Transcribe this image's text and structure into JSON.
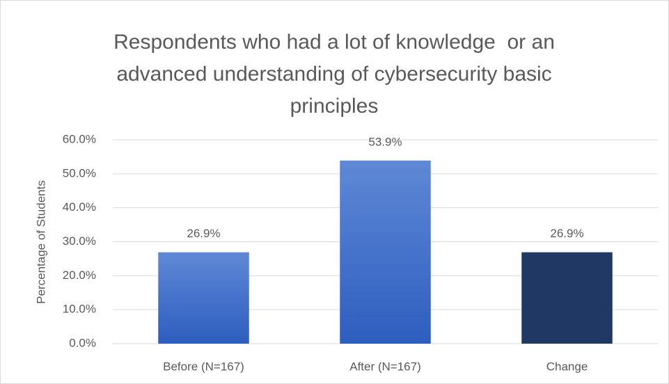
{
  "chart_data": {
    "type": "bar",
    "title": "Respondents who had a lot of knowledge  or an advanced understanding of cybersecurity basic principles",
    "y_label": "Percentage of Students",
    "categories": [
      "Before (N=167)",
      "After (N=167)",
      "Change"
    ],
    "values": [
      26.9,
      53.9,
      26.9
    ],
    "value_labels": [
      "26.9%",
      "53.9%",
      "26.9%"
    ],
    "colors": [
      "#4472c4",
      "#4472c4",
      "#203864"
    ],
    "ylim": [
      0,
      60
    ],
    "yticks": [
      {
        "value": 0,
        "label": "0.0%"
      },
      {
        "value": 10,
        "label": "10.0%"
      },
      {
        "value": 20,
        "label": "20.0%"
      },
      {
        "value": 30,
        "label": "30.0%"
      },
      {
        "value": 40,
        "label": "40.0%"
      },
      {
        "value": 50,
        "label": "50.0%"
      },
      {
        "value": 60,
        "label": "60.0%"
      }
    ],
    "grid": true
  }
}
